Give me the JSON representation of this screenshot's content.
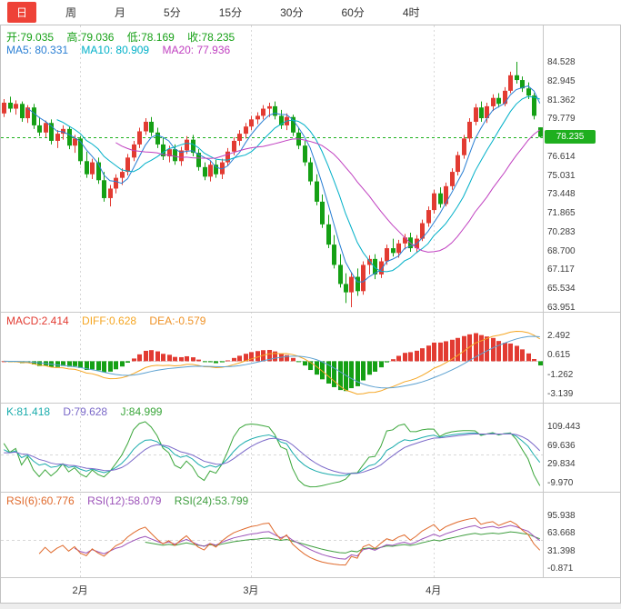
{
  "toolbar": {
    "tabs": [
      {
        "id": "day",
        "label": "日",
        "active": true
      },
      {
        "id": "week",
        "label": "周",
        "active": false
      },
      {
        "id": "month",
        "label": "月",
        "active": false
      },
      {
        "id": "5min",
        "label": "5分",
        "active": false
      },
      {
        "id": "15min",
        "label": "15分",
        "active": false
      },
      {
        "id": "30min",
        "label": "30分",
        "active": false
      },
      {
        "id": "60min",
        "label": "60分",
        "active": false
      },
      {
        "id": "4hour",
        "label": "4时",
        "active": false
      }
    ]
  },
  "readouts": {
    "ohlc": {
      "open": "开:79.035",
      "high": "高:79.036",
      "low": "低:78.169",
      "close": "收:78.235"
    },
    "ma": {
      "ma5": "MA5: 80.331",
      "ma10": "MA10: 80.909",
      "ma20": "MA20: 77.936"
    },
    "macd": {
      "macd": "MACD:2.414",
      "diff": "DIFF:0.628",
      "dea": "DEA:-0.579"
    },
    "kdj": {
      "k": "K:81.418",
      "d": "D:79.628",
      "j": "J:84.999"
    },
    "rsi": {
      "rsi6": "RSI(6):60.776",
      "rsi12": "RSI(12):58.079",
      "rsi24": "RSI(24):53.799"
    }
  },
  "colors": {
    "accent": "#ee4237",
    "up": "#e23b32",
    "down": "#15a015",
    "ma5": "#2a7fd4",
    "ma10": "#00b0c8",
    "ma20": "#c03fc0",
    "diff": "#f5a623",
    "dea": "#ef9226",
    "diff_line": "#f5a623",
    "dea_line": "#5ba0d0",
    "k": "#1aacac",
    "d": "#7a68c8",
    "j": "#3aa63a",
    "rsi6": "#e06a2c",
    "rsi12": "#9b50b8",
    "rsi24": "#3f9e3f",
    "price_line": "#1db11d",
    "badge_bg": "#1faf1f",
    "grid": "#d8d8d8",
    "separator": "#c8c8c8",
    "axis_text": "#3c3c3c"
  },
  "chart_data": {
    "type": "candlestick",
    "title": "",
    "main": {
      "ylim": [
        63.951,
        84.528
      ],
      "yticks": [
        "84.528",
        "82.945",
        "81.362",
        "79.779",
        "76.614",
        "75.031",
        "73.448",
        "71.865",
        "70.283",
        "68.700",
        "67.117",
        "65.534",
        "63.951"
      ],
      "current_price": "78.235",
      "candles": [
        [
          80.2,
          81.4,
          79.9,
          81.1
        ],
        [
          81.1,
          81.6,
          80.3,
          80.6
        ],
        [
          80.6,
          81.3,
          80.1,
          81.0
        ],
        [
          81.0,
          81.2,
          79.5,
          79.8
        ],
        [
          79.8,
          80.9,
          79.4,
          80.7
        ],
        [
          80.7,
          81.0,
          78.9,
          79.2
        ],
        [
          79.2,
          79.9,
          78.3,
          78.6
        ],
        [
          78.6,
          79.6,
          78.2,
          79.4
        ],
        [
          79.4,
          79.7,
          77.6,
          77.9
        ],
        [
          77.9,
          78.8,
          77.3,
          78.5
        ],
        [
          78.5,
          79.2,
          78.0,
          78.9
        ],
        [
          78.9,
          79.1,
          77.2,
          77.5
        ],
        [
          77.5,
          78.4,
          76.9,
          78.1
        ],
        [
          78.1,
          78.3,
          75.9,
          76.2
        ],
        [
          76.2,
          77.0,
          74.8,
          75.1
        ],
        [
          75.1,
          76.4,
          74.7,
          76.1
        ],
        [
          76.1,
          76.5,
          74.3,
          74.6
        ],
        [
          74.6,
          75.3,
          72.8,
          73.1
        ],
        [
          73.1,
          74.2,
          72.4,
          73.9
        ],
        [
          73.9,
          75.1,
          73.5,
          74.8
        ],
        [
          74.8,
          75.6,
          74.2,
          75.3
        ],
        [
          75.3,
          76.8,
          75.0,
          76.5
        ],
        [
          76.5,
          77.9,
          76.2,
          77.6
        ],
        [
          77.6,
          79.0,
          77.3,
          78.7
        ],
        [
          78.7,
          79.8,
          78.4,
          79.5
        ],
        [
          79.5,
          79.9,
          78.3,
          78.6
        ],
        [
          78.6,
          79.0,
          77.3,
          77.6
        ],
        [
          77.6,
          78.2,
          76.3,
          76.6
        ],
        [
          76.6,
          77.5,
          76.1,
          77.2
        ],
        [
          77.2,
          77.6,
          75.9,
          76.2
        ],
        [
          76.2,
          77.4,
          75.8,
          77.1
        ],
        [
          77.1,
          78.3,
          76.8,
          78.0
        ],
        [
          78.0,
          78.4,
          76.6,
          76.9
        ],
        [
          76.9,
          77.2,
          75.4,
          75.7
        ],
        [
          75.7,
          76.1,
          74.6,
          74.9
        ],
        [
          74.9,
          76.2,
          74.5,
          75.9
        ],
        [
          75.9,
          76.3,
          74.8,
          75.1
        ],
        [
          75.1,
          76.4,
          74.7,
          76.1
        ],
        [
          76.1,
          77.3,
          75.8,
          77.0
        ],
        [
          77.0,
          78.2,
          76.7,
          77.9
        ],
        [
          77.9,
          78.8,
          77.5,
          78.5
        ],
        [
          78.5,
          79.4,
          78.1,
          79.1
        ],
        [
          79.1,
          80.0,
          78.8,
          79.7
        ],
        [
          79.7,
          80.3,
          79.3,
          80.0
        ],
        [
          80.0,
          80.9,
          79.7,
          80.6
        ],
        [
          80.6,
          81.1,
          79.9,
          80.8
        ],
        [
          80.8,
          81.2,
          79.7,
          80.0
        ],
        [
          80.0,
          80.5,
          78.9,
          79.2
        ],
        [
          79.2,
          80.2,
          78.8,
          79.9
        ],
        [
          79.9,
          80.1,
          78.3,
          78.6
        ],
        [
          78.6,
          79.0,
          77.2,
          77.5
        ],
        [
          77.5,
          77.9,
          75.8,
          76.1
        ],
        [
          76.1,
          76.5,
          74.2,
          74.5
        ],
        [
          74.5,
          75.1,
          72.5,
          72.8
        ],
        [
          72.8,
          73.4,
          70.6,
          70.9
        ],
        [
          70.9,
          71.7,
          68.9,
          69.2
        ],
        [
          69.2,
          70.0,
          67.2,
          67.5
        ],
        [
          67.5,
          68.4,
          65.6,
          65.9
        ],
        [
          65.9,
          66.8,
          64.3,
          65.2
        ],
        [
          65.2,
          66.9,
          63.951,
          66.5
        ],
        [
          66.5,
          67.2,
          64.9,
          65.3
        ],
        [
          65.3,
          67.8,
          65.0,
          67.5
        ],
        [
          67.5,
          68.3,
          66.7,
          68.0
        ],
        [
          68.0,
          68.4,
          66.3,
          66.7
        ],
        [
          66.7,
          68.1,
          66.4,
          67.8
        ],
        [
          67.8,
          69.2,
          67.5,
          68.9
        ],
        [
          68.9,
          69.7,
          68.2,
          68.5
        ],
        [
          68.5,
          69.6,
          68.1,
          69.3
        ],
        [
          69.3,
          70.1,
          68.8,
          69.8
        ],
        [
          69.8,
          70.2,
          68.6,
          68.9
        ],
        [
          68.9,
          70.0,
          68.5,
          69.7
        ],
        [
          69.7,
          71.3,
          69.5,
          71.0
        ],
        [
          71.0,
          72.4,
          70.7,
          72.1
        ],
        [
          72.1,
          73.8,
          71.8,
          73.5
        ],
        [
          73.5,
          74.0,
          72.3,
          72.6
        ],
        [
          72.6,
          74.4,
          72.4,
          74.1
        ],
        [
          74.1,
          75.6,
          73.8,
          75.3
        ],
        [
          75.3,
          77.0,
          75.0,
          76.7
        ],
        [
          76.7,
          78.4,
          76.4,
          78.1
        ],
        [
          78.1,
          79.8,
          77.8,
          79.5
        ],
        [
          79.5,
          81.0,
          79.2,
          80.7
        ],
        [
          80.7,
          81.2,
          79.5,
          79.8
        ],
        [
          79.8,
          81.1,
          79.4,
          80.8
        ],
        [
          80.8,
          81.8,
          80.4,
          81.5
        ],
        [
          81.5,
          81.9,
          80.7,
          81.0
        ],
        [
          81.0,
          82.4,
          80.8,
          82.1
        ],
        [
          82.1,
          83.7,
          81.9,
          83.4
        ],
        [
          83.4,
          84.528,
          82.7,
          83.0
        ],
        [
          83.0,
          83.3,
          82.0,
          82.3
        ],
        [
          82.3,
          82.8,
          81.4,
          81.7
        ],
        [
          81.7,
          81.9,
          79.7,
          80.0
        ],
        [
          79.035,
          79.036,
          78.169,
          78.235
        ]
      ]
    },
    "indicators_displayed": {
      "ma": {
        "ma5": 80.331,
        "ma10": 80.909,
        "ma20": 77.936
      },
      "macd": {
        "macd": 2.414,
        "diff": 0.628,
        "dea": -0.579
      },
      "kdj": {
        "k": 81.418,
        "d": 79.628,
        "j": 84.999
      },
      "rsi": {
        "rsi6": 60.776,
        "rsi12": 58.079,
        "rsi24": 53.799
      }
    },
    "panels": [
      {
        "id": "macd",
        "type": "bar",
        "yticks": [
          "2.492",
          "0.615",
          "-1.262",
          "-3.139"
        ]
      },
      {
        "id": "kdj",
        "type": "line",
        "yticks": [
          "109.443",
          "69.636",
          "29.834",
          "-9.970"
        ]
      },
      {
        "id": "rsi",
        "type": "line",
        "yticks": [
          "95.938",
          "63.668",
          "31.398",
          "-0.871"
        ]
      }
    ],
    "x_months": [
      {
        "label": "2月",
        "index": 13
      },
      {
        "label": "3月",
        "index": 42
      },
      {
        "label": "4月",
        "index": 73
      }
    ]
  }
}
